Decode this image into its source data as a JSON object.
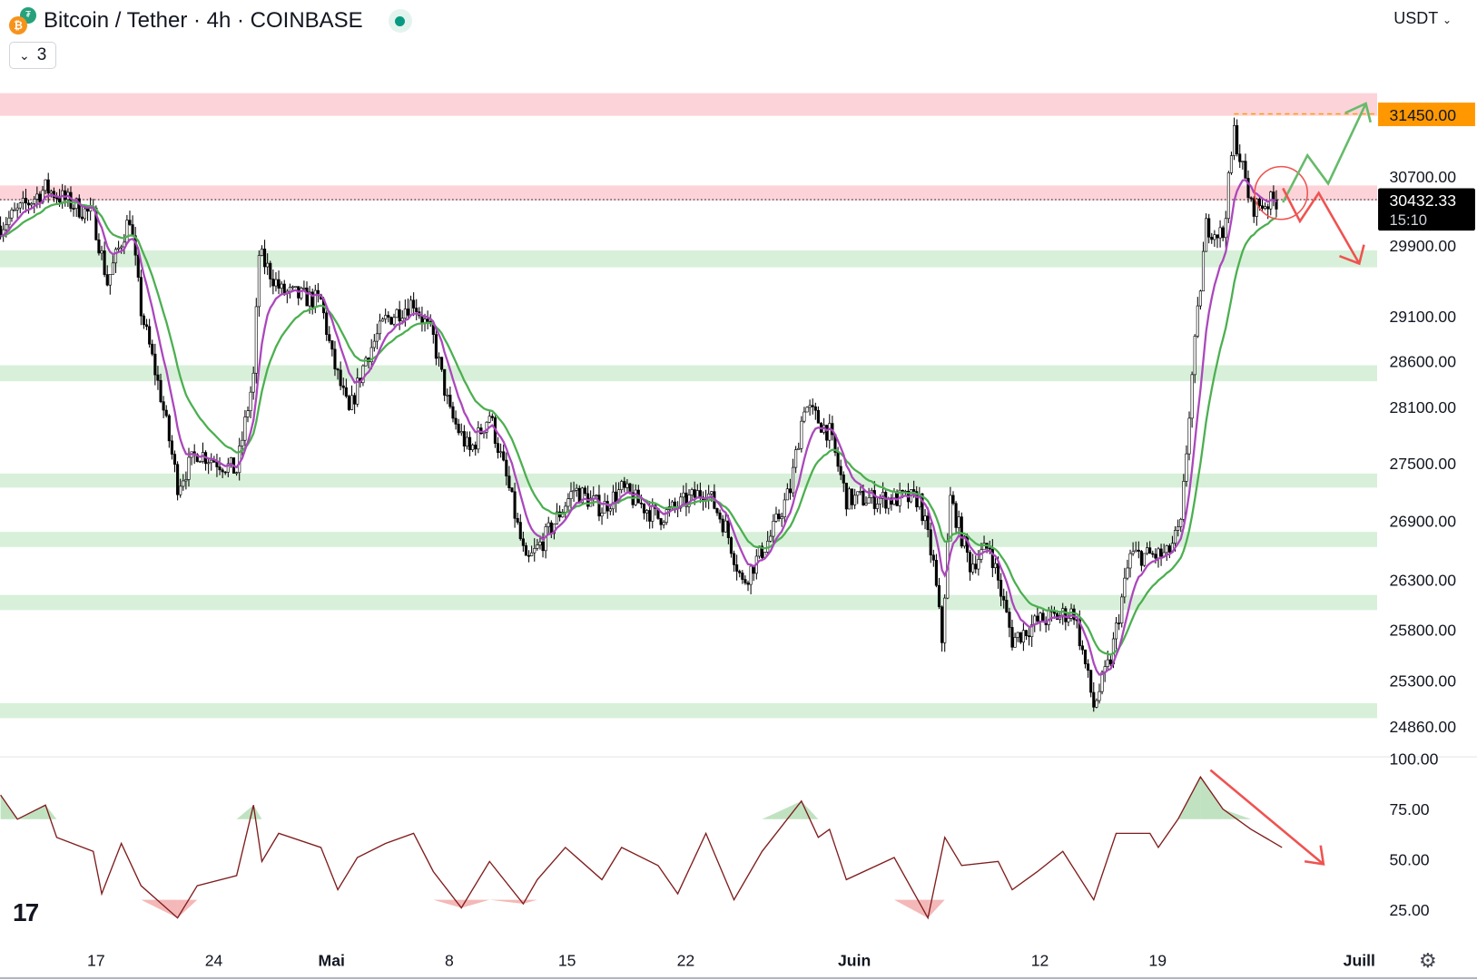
{
  "header": {
    "title": "Bitcoin / Tether · 4h · COINBASE",
    "base_icon": "bitcoin-icon",
    "quote_icon": "tether-icon",
    "market_status": "live-dot",
    "indicators_count": "3",
    "currency": "USDT"
  },
  "colors": {
    "candle": "#000000",
    "ma_fast": "#ab47bc",
    "ma_slow": "#4caf50",
    "resistance_zone": "#fcd3d8",
    "support_zone": "#d8f0d9",
    "highlight_price": "#ff9800",
    "rsi_line": "#7f1d1d",
    "arrow_up": "#66bb6a",
    "arrow_down": "#ef5350"
  },
  "price_axis": {
    "ticks": [
      "30700.00",
      "29900.00",
      "29100.00",
      "28600.00",
      "28100.00",
      "27500.00",
      "26900.00",
      "26300.00",
      "25800.00",
      "25300.00",
      "24860.00"
    ],
    "highlight_label": "31450.00",
    "last_price": "30432.33",
    "countdown": "15:10",
    "scale": "log"
  },
  "rsi_axis": {
    "ticks": [
      "100.00",
      "75.00",
      "50.00",
      "25.00"
    ]
  },
  "time_axis": {
    "ticks": [
      "17",
      "24",
      "Mai",
      "8",
      "15",
      "22",
      "Juin",
      "12",
      "19",
      "Juill"
    ]
  },
  "chart_data": [
    {
      "type": "candlestick",
      "title": "Bitcoin / Tether · 4h · COINBASE",
      "ylim": [
        24700,
        31800
      ],
      "yscale": "log",
      "price_path": [
        [
          "04-11T08",
          30126
        ],
        [
          "04-14T00",
          30565
        ],
        [
          "04-16T20",
          30236
        ],
        [
          "04-17T16",
          29480
        ],
        [
          "04-19T00",
          30236
        ],
        [
          "04-19T16",
          29163
        ],
        [
          "04-20T20",
          28229
        ],
        [
          "04-21T20",
          27277
        ],
        [
          "04-23T00",
          27624
        ],
        [
          "04-25T08",
          27425
        ],
        [
          "04-26T08",
          28434
        ],
        [
          "04-26T16",
          29802
        ],
        [
          "04-28T00",
          29374
        ],
        [
          "04-30T08",
          29268
        ],
        [
          "05-01T00",
          28641
        ],
        [
          "05-02T00",
          28026
        ],
        [
          "05-03T00",
          28641
        ],
        [
          "05-04T04",
          29058
        ],
        [
          "05-05T20",
          29268
        ],
        [
          "05-07T00",
          28848
        ],
        [
          "05-08T00",
          28026
        ],
        [
          "05-09T04",
          27624
        ],
        [
          "05-10T08",
          28026
        ],
        [
          "05-11T12",
          27228
        ],
        [
          "05-12T12",
          26452
        ],
        [
          "05-13T16",
          26740
        ],
        [
          "05-15T08",
          27228
        ],
        [
          "05-17T00",
          27032
        ],
        [
          "05-18T04",
          27228
        ],
        [
          "05-20T08",
          26934
        ],
        [
          "05-23T04",
          27228
        ],
        [
          "05-24T08",
          26837
        ],
        [
          "05-25T08",
          26262
        ],
        [
          "05-27T00",
          26740
        ],
        [
          "05-28T04",
          27228
        ],
        [
          "05-29T00",
          28128
        ],
        [
          "05-30T12",
          27824
        ],
        [
          "05-31T12",
          27130
        ],
        [
          "06-02T08",
          27130
        ],
        [
          "06-04T20",
          27130
        ],
        [
          "06-05T16",
          26452
        ],
        [
          "06-06T04",
          25699
        ],
        [
          "06-06T16",
          27130
        ],
        [
          "06-07T20",
          26452
        ],
        [
          "06-09T00",
          26644
        ],
        [
          "06-10T08",
          25699
        ],
        [
          "06-11T20",
          25885
        ],
        [
          "06-14T00",
          25979
        ],
        [
          "06-15T04",
          25057
        ],
        [
          "06-16T04",
          25514
        ],
        [
          "06-17T08",
          26548
        ],
        [
          "06-19T12",
          26548
        ],
        [
          "06-20T08",
          26837
        ],
        [
          "06-21T00",
          28434
        ],
        [
          "06-21T20",
          30126
        ],
        [
          "06-22T20",
          30018
        ],
        [
          "06-23T12",
          31235
        ],
        [
          "06-24T12",
          30345
        ],
        [
          "06-26T04",
          30432
        ]
      ],
      "zones": [
        {
          "kind": "resistance",
          "low": 31427,
          "high": 31701
        },
        {
          "kind": "resistance",
          "low": 30422,
          "high": 30598
        },
        {
          "kind": "support",
          "low": 29652,
          "high": 29845
        },
        {
          "kind": "support",
          "low": 28383,
          "high": 28558
        },
        {
          "kind": "support",
          "low": 27248,
          "high": 27396
        },
        {
          "kind": "support",
          "low": 26634,
          "high": 26789
        },
        {
          "kind": "support",
          "low": 25997,
          "high": 26148
        },
        {
          "kind": "support",
          "low": 24940,
          "high": 25084
        }
      ],
      "level_line": 31450,
      "last_price": 30432.33,
      "moving_averages": [
        "fast",
        "slow"
      ]
    },
    {
      "type": "line",
      "title": "",
      "ylim": [
        0,
        100
      ],
      "ticks": [
        25,
        50,
        75,
        100
      ],
      "series": [
        {
          "values": [
            [
              "04-11T08",
              82
            ],
            [
              "04-12T08",
              70
            ],
            [
              "04-14T00",
              77
            ],
            [
              "04-14T16",
              61
            ],
            [
              "04-16T20",
              54
            ],
            [
              "04-17T08",
              33
            ],
            [
              "04-18T12",
              58
            ],
            [
              "04-19T16",
              37
            ],
            [
              "04-21T20",
              21
            ],
            [
              "04-23T00",
              37
            ],
            [
              "04-25T08",
              42
            ],
            [
              "04-26T08",
              77
            ],
            [
              "04-26T20",
              49
            ],
            [
              "04-27T20",
              63
            ],
            [
              "04-30T08",
              56
            ],
            [
              "05-01T08",
              35
            ],
            [
              "05-02T12",
              51
            ],
            [
              "05-04T04",
              58
            ],
            [
              "05-05T20",
              63
            ],
            [
              "05-07T00",
              44
            ],
            [
              "05-08T16",
              26
            ],
            [
              "05-10T08",
              49
            ],
            [
              "05-12T08",
              28
            ],
            [
              "05-13T04",
              40
            ],
            [
              "05-14T20",
              56
            ],
            [
              "05-17T00",
              40
            ],
            [
              "05-18T04",
              56
            ],
            [
              "05-20T08",
              47
            ],
            [
              "05-21T12",
              33
            ],
            [
              "05-23T04",
              63
            ],
            [
              "05-24T20",
              30
            ],
            [
              "05-26T12",
              54
            ],
            [
              "05-28T20",
              79
            ],
            [
              "05-29T20",
              61
            ],
            [
              "05-30T12",
              65
            ],
            [
              "05-31T12",
              40
            ],
            [
              "06-03T08",
              51
            ],
            [
              "06-05T08",
              21
            ],
            [
              "06-06T08",
              61
            ],
            [
              "06-07T08",
              47
            ],
            [
              "06-09T12",
              49
            ],
            [
              "06-10T08",
              35
            ],
            [
              "06-11T20",
              44
            ],
            [
              "06-13T08",
              54
            ],
            [
              "06-15T04",
              30
            ],
            [
              "06-16T12",
              63
            ],
            [
              "06-18T12",
              63
            ],
            [
              "06-19T00",
              56
            ],
            [
              "06-20T04",
              70
            ],
            [
              "06-21T12",
              91
            ],
            [
              "06-22T20",
              75
            ],
            [
              "06-24T12",
              65
            ],
            [
              "06-26T08",
              56
            ]
          ]
        }
      ]
    }
  ]
}
